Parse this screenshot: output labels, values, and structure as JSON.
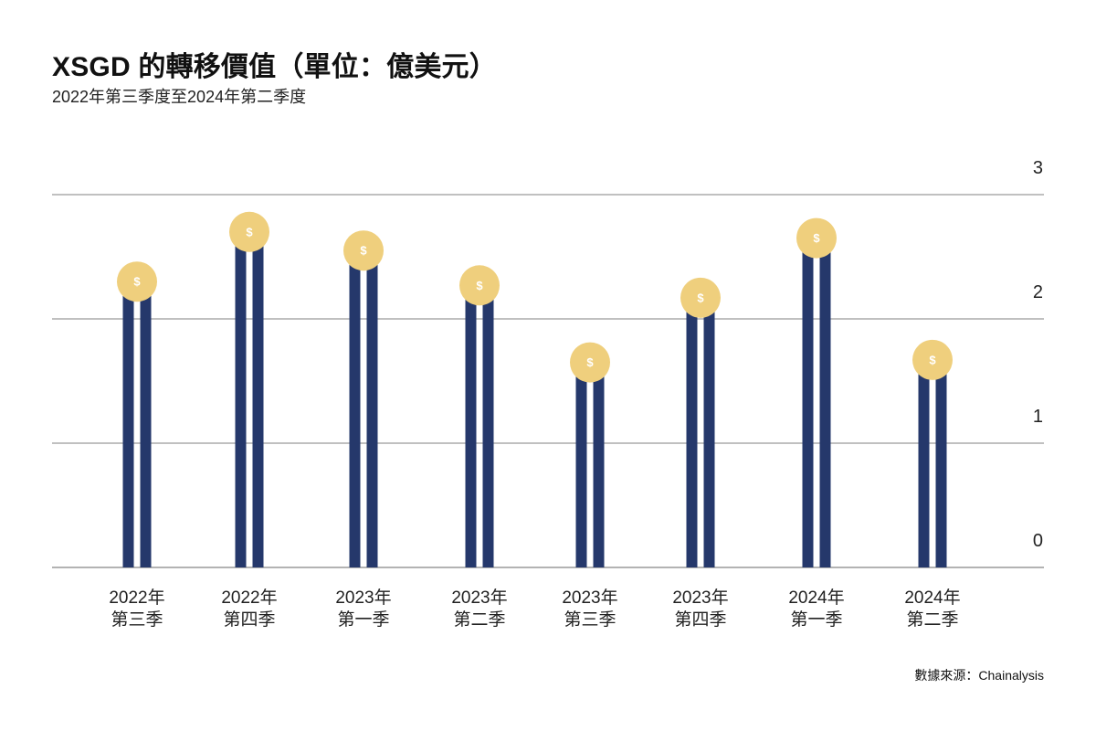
{
  "header": {
    "title": "XSGD 的轉移價值（單位：億美元）",
    "subtitle": "2022年第三季度至2024年第二季度"
  },
  "footer": {
    "source": "數據來源：Chainalysis"
  },
  "coin_symbol": "$",
  "colors": {
    "bar": "#25386b",
    "coin": "#efcf7d",
    "coin_text": "#ffffff",
    "grid": "#9a9a9a",
    "axis_text": "#222222"
  },
  "chart_data": {
    "type": "bar",
    "title": "XSGD 的轉移價值（單位：億美元）",
    "subtitle": "2022年第三季度至2024年第二季度",
    "xlabel": "",
    "ylabel": "",
    "categories": [
      [
        "2022年",
        "第三季"
      ],
      [
        "2022年",
        "第四季"
      ],
      [
        "2023年",
        "第一季"
      ],
      [
        "2023年",
        "第二季"
      ],
      [
        "2023年",
        "第三季"
      ],
      [
        "2023年",
        "第四季"
      ],
      [
        "2024年",
        "第一季"
      ],
      [
        "2024年",
        "第二季"
      ]
    ],
    "values": [
      2.3,
      2.7,
      2.55,
      2.27,
      1.65,
      2.17,
      2.65,
      1.67
    ],
    "ylim": [
      0,
      3
    ],
    "yticks": [
      0,
      1,
      2,
      3
    ],
    "y_axis_position": "right",
    "grid": true,
    "legend": "none"
  }
}
